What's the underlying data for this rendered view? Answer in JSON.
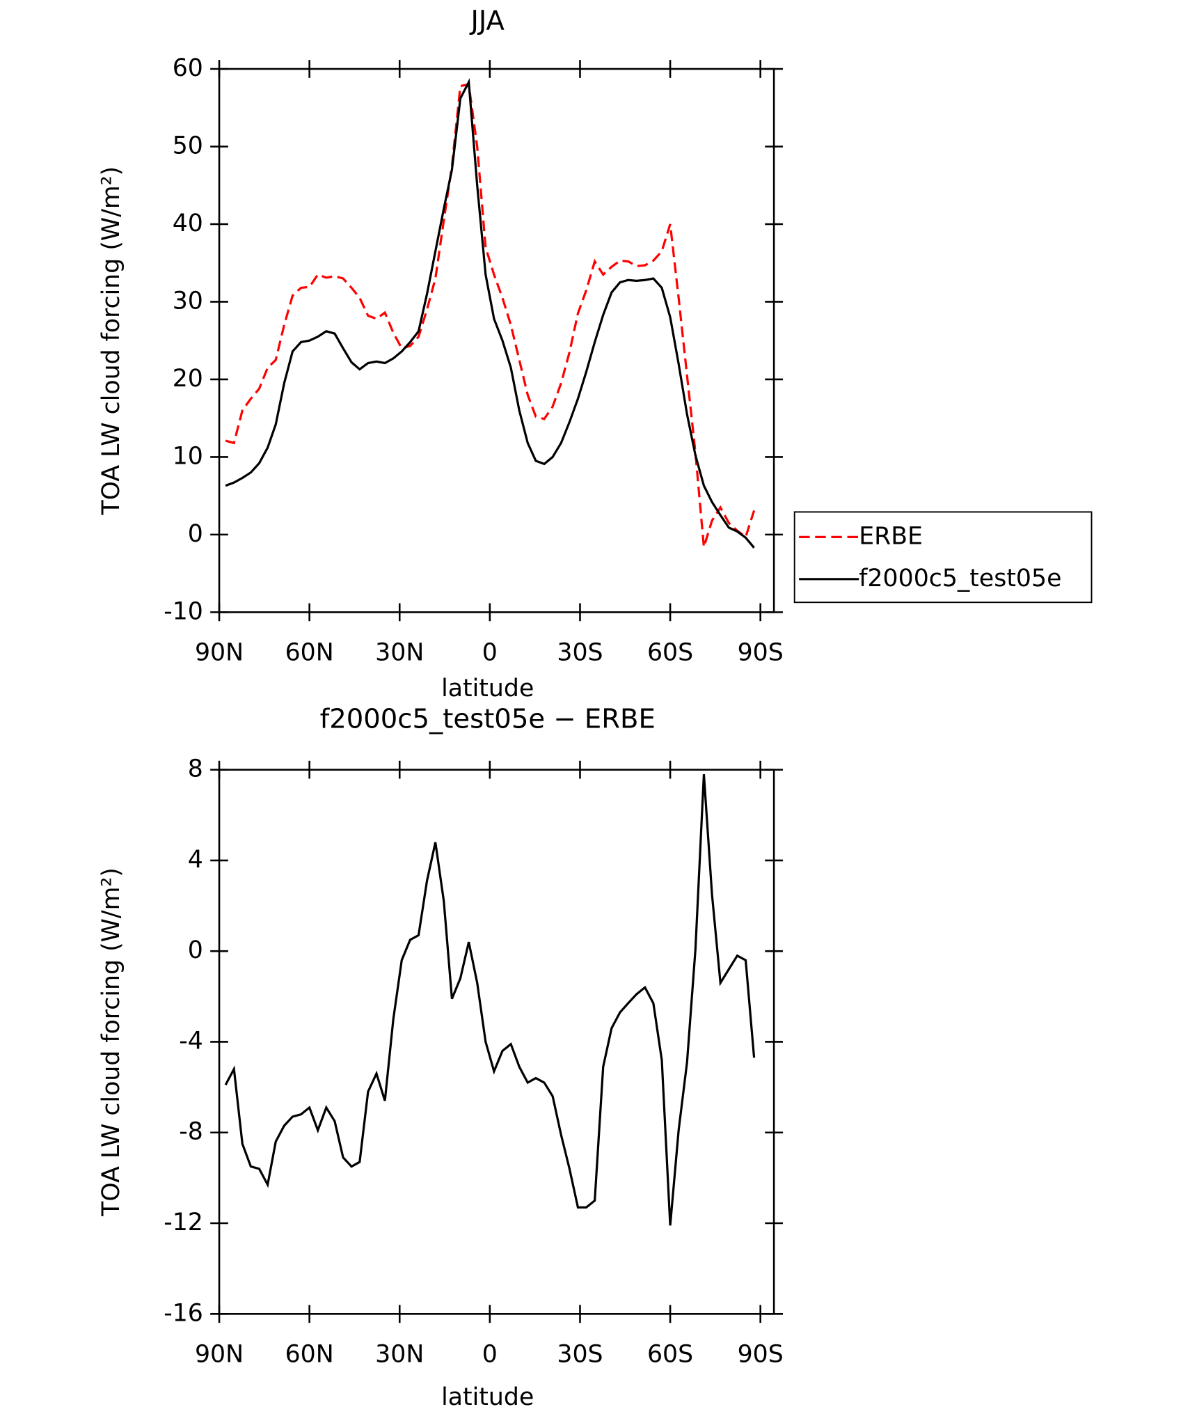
{
  "chart_data": [
    {
      "type": "line",
      "title": "JJA",
      "xlabel": "latitude",
      "ylabel": "TOA LW cloud forcing (W/m²)",
      "x": [
        87.9,
        85.1,
        82.3,
        79.5,
        76.7,
        73.9,
        71.2,
        68.4,
        65.6,
        62.8,
        60.0,
        57.2,
        54.4,
        51.6,
        48.8,
        46.0,
        43.3,
        40.5,
        37.7,
        34.9,
        32.1,
        29.3,
        26.5,
        23.7,
        20.9,
        18.1,
        15.3,
        12.6,
        9.8,
        7.0,
        4.2,
        1.4,
        -1.4,
        -4.2,
        -7.0,
        -9.8,
        -12.6,
        -15.3,
        -18.1,
        -20.9,
        -23.7,
        -26.5,
        -29.3,
        -32.1,
        -34.9,
        -37.7,
        -40.5,
        -43.3,
        -46.0,
        -48.8,
        -51.6,
        -54.4,
        -57.2,
        -60.0,
        -62.8,
        -65.6,
        -68.4,
        -71.2,
        -73.9,
        -76.7,
        -79.5,
        -82.3,
        -85.1,
        -87.9
      ],
      "xlim": [
        90,
        -94.5
      ],
      "xticks": [
        {
          "value": 90,
          "label": "90N"
        },
        {
          "value": 60,
          "label": "60N"
        },
        {
          "value": 30,
          "label": "30N"
        },
        0,
        {
          "value": -30,
          "label": "30S"
        },
        {
          "value": -60,
          "label": "60S"
        },
        {
          "value": -90,
          "label": "90S"
        }
      ],
      "ylim": [
        -10,
        60
      ],
      "yticks": [
        -10,
        0,
        10,
        20,
        30,
        40,
        50,
        60
      ],
      "legend": "right",
      "series": [
        {
          "name": "ERBE",
          "color": "#ff0000",
          "line_style": "dashed",
          "values": [
            12.1,
            11.8,
            16.0,
            17.5,
            18.8,
            21.5,
            22.5,
            27.0,
            30.8,
            31.8,
            31.9,
            33.5,
            33.1,
            33.3,
            33.0,
            31.8,
            30.5,
            28.2,
            27.8,
            28.6,
            26.0,
            24.0,
            24.3,
            25.5,
            29.0,
            33.0,
            40.5,
            47.5,
            57.8,
            58.0,
            50.0,
            37.0,
            33.5,
            30.5,
            27.0,
            22.5,
            18.0,
            15.2,
            14.9,
            16.5,
            19.5,
            23.5,
            28.5,
            31.5,
            35.2,
            33.5,
            34.5,
            35.3,
            35.2,
            34.6,
            34.7,
            35.3,
            36.5,
            40.0,
            30.5,
            20.5,
            10.5,
            -1.6,
            1.8,
            3.5,
            1.5,
            0.5,
            -0.3,
            3.1
          ]
        },
        {
          "name": "f2000c5_test05e",
          "color": "#000000",
          "line_style": "solid",
          "values": [
            6.3,
            6.7,
            7.3,
            8.0,
            9.2,
            11.2,
            14.2,
            19.5,
            23.6,
            24.8,
            25.0,
            25.5,
            26.2,
            25.9,
            24.0,
            22.2,
            21.3,
            22.1,
            22.3,
            22.1,
            22.7,
            23.6,
            24.8,
            26.2,
            31.0,
            36.5,
            42.0,
            47.0,
            56.2,
            58.3,
            45.0,
            33.5,
            27.8,
            25.0,
            21.5,
            16.0,
            11.8,
            9.5,
            9.1,
            10.0,
            11.8,
            14.5,
            17.5,
            21.0,
            24.8,
            28.3,
            31.2,
            32.5,
            32.8,
            32.7,
            32.8,
            33.0,
            31.8,
            28.0,
            22.0,
            15.5,
            10.2,
            6.3,
            4.2,
            2.5,
            0.9,
            0.4,
            -0.4,
            -1.7
          ]
        }
      ]
    },
    {
      "type": "line",
      "title": "f2000c5_test05e − ERBE",
      "xlabel": "latitude",
      "ylabel": "TOA LW cloud forcing (W/m²)",
      "x": [
        87.9,
        85.1,
        82.3,
        79.5,
        76.7,
        73.9,
        71.2,
        68.4,
        65.6,
        62.8,
        60.0,
        57.2,
        54.4,
        51.6,
        48.8,
        46.0,
        43.3,
        40.5,
        37.7,
        34.9,
        32.1,
        29.3,
        26.5,
        23.7,
        20.9,
        18.1,
        15.3,
        12.6,
        9.8,
        7.0,
        4.2,
        1.4,
        -1.4,
        -4.2,
        -7.0,
        -9.8,
        -12.6,
        -15.3,
        -18.1,
        -20.9,
        -23.7,
        -26.5,
        -29.3,
        -32.1,
        -34.9,
        -37.7,
        -40.5,
        -43.3,
        -46.0,
        -48.8,
        -51.6,
        -54.4,
        -57.2,
        -60.0,
        -62.8,
        -65.6,
        -68.4,
        -71.2,
        -73.9,
        -76.7,
        -79.5,
        -82.3,
        -85.1,
        -87.9
      ],
      "xlim": [
        90,
        -94.5
      ],
      "xticks": [
        {
          "value": 90,
          "label": "90N"
        },
        {
          "value": 60,
          "label": "60N"
        },
        {
          "value": 30,
          "label": "30N"
        },
        0,
        {
          "value": -30,
          "label": "30S"
        },
        {
          "value": -60,
          "label": "60S"
        },
        {
          "value": -90,
          "label": "90S"
        }
      ],
      "ylim": [
        -16,
        8
      ],
      "yticks": [
        -16,
        -12,
        -8,
        -4,
        0,
        4,
        8
      ],
      "series": [
        {
          "color": "#000000",
          "line_style": "solid",
          "values": [
            -5.9,
            -5.2,
            -8.5,
            -9.5,
            -9.6,
            -10.3,
            -8.4,
            -7.7,
            -7.3,
            -7.2,
            -6.9,
            -7.9,
            -6.9,
            -7.5,
            -9.1,
            -9.5,
            -9.3,
            -6.2,
            -5.4,
            -6.6,
            -3.0,
            -0.4,
            0.5,
            0.7,
            3.1,
            4.8,
            2.2,
            -2.1,
            -1.2,
            0.4,
            -1.4,
            -4.0,
            -5.3,
            -4.4,
            -4.1,
            -5.1,
            -5.8,
            -5.6,
            -5.8,
            -6.4,
            -8.1,
            -9.6,
            -11.3,
            -11.3,
            -11.0,
            -5.1,
            -3.4,
            -2.7,
            -2.3,
            -1.9,
            -1.6,
            -2.3,
            -4.8,
            -12.1,
            -7.9,
            -4.9,
            0.1,
            7.8,
            2.5,
            -1.4,
            -0.8,
            -0.2,
            -0.4,
            -4.7
          ]
        }
      ]
    }
  ]
}
